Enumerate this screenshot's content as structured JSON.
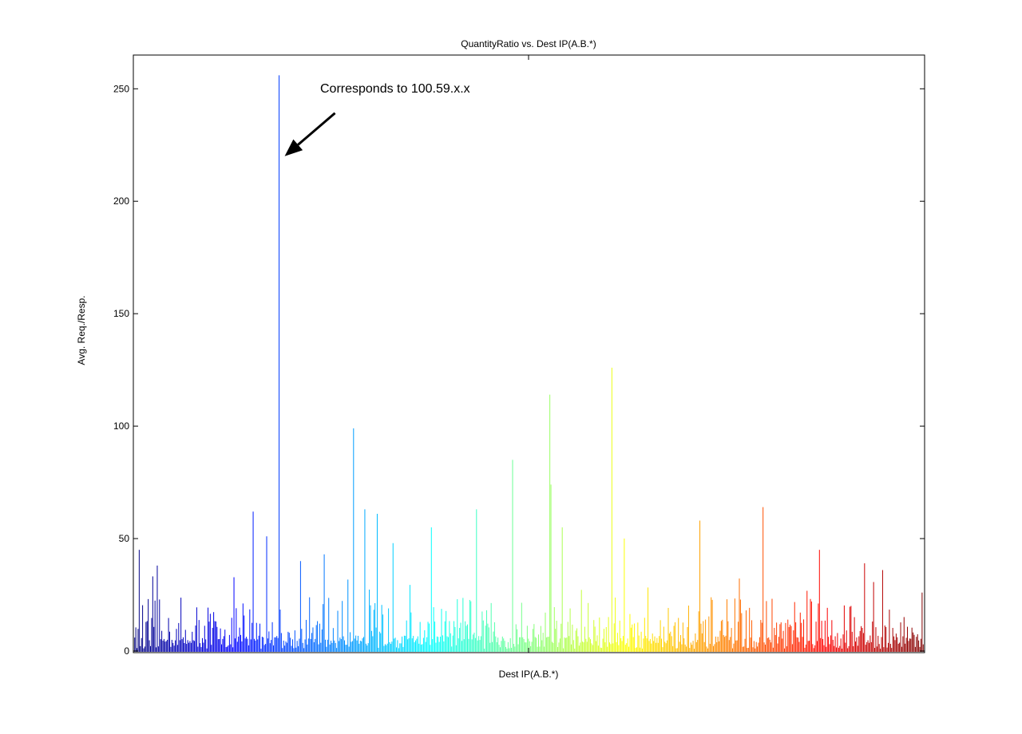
{
  "chart_data": {
    "type": "bar",
    "title": "QuantityRatio vs. Dest IP(A.B.*)",
    "xlabel": "Dest IP(A.B.*)",
    "ylabel": "Avg. Req./Resp.",
    "ylim": [
      0,
      265
    ],
    "yticks": [
      0,
      50,
      100,
      150,
      200,
      250
    ],
    "colormap": "jet",
    "bar_count": 700,
    "grid": false,
    "legend": "none",
    "peaks": [
      {
        "index": 4,
        "value": 45
      },
      {
        "index": 20,
        "value": 38
      },
      {
        "index": 105,
        "value": 62
      },
      {
        "index": 117,
        "value": 51
      },
      {
        "index": 128,
        "value": 256
      },
      {
        "index": 147,
        "value": 40
      },
      {
        "index": 168,
        "value": 43
      },
      {
        "index": 194,
        "value": 99
      },
      {
        "index": 204,
        "value": 63
      },
      {
        "index": 215,
        "value": 61
      },
      {
        "index": 229,
        "value": 48
      },
      {
        "index": 263,
        "value": 55
      },
      {
        "index": 303,
        "value": 63
      },
      {
        "index": 335,
        "value": 85
      },
      {
        "index": 368,
        "value": 114
      },
      {
        "index": 369,
        "value": 74
      },
      {
        "index": 379,
        "value": 55
      },
      {
        "index": 423,
        "value": 126
      },
      {
        "index": 434,
        "value": 50
      },
      {
        "index": 501,
        "value": 58
      },
      {
        "index": 557,
        "value": 64
      },
      {
        "index": 607,
        "value": 45
      },
      {
        "index": 647,
        "value": 39
      },
      {
        "index": 663,
        "value": 36
      },
      {
        "index": 698,
        "value": 26
      }
    ],
    "annotations": [
      {
        "text": "Corresponds to 100.59.x.x",
        "target_index": 128,
        "target_value": 225
      }
    ]
  }
}
